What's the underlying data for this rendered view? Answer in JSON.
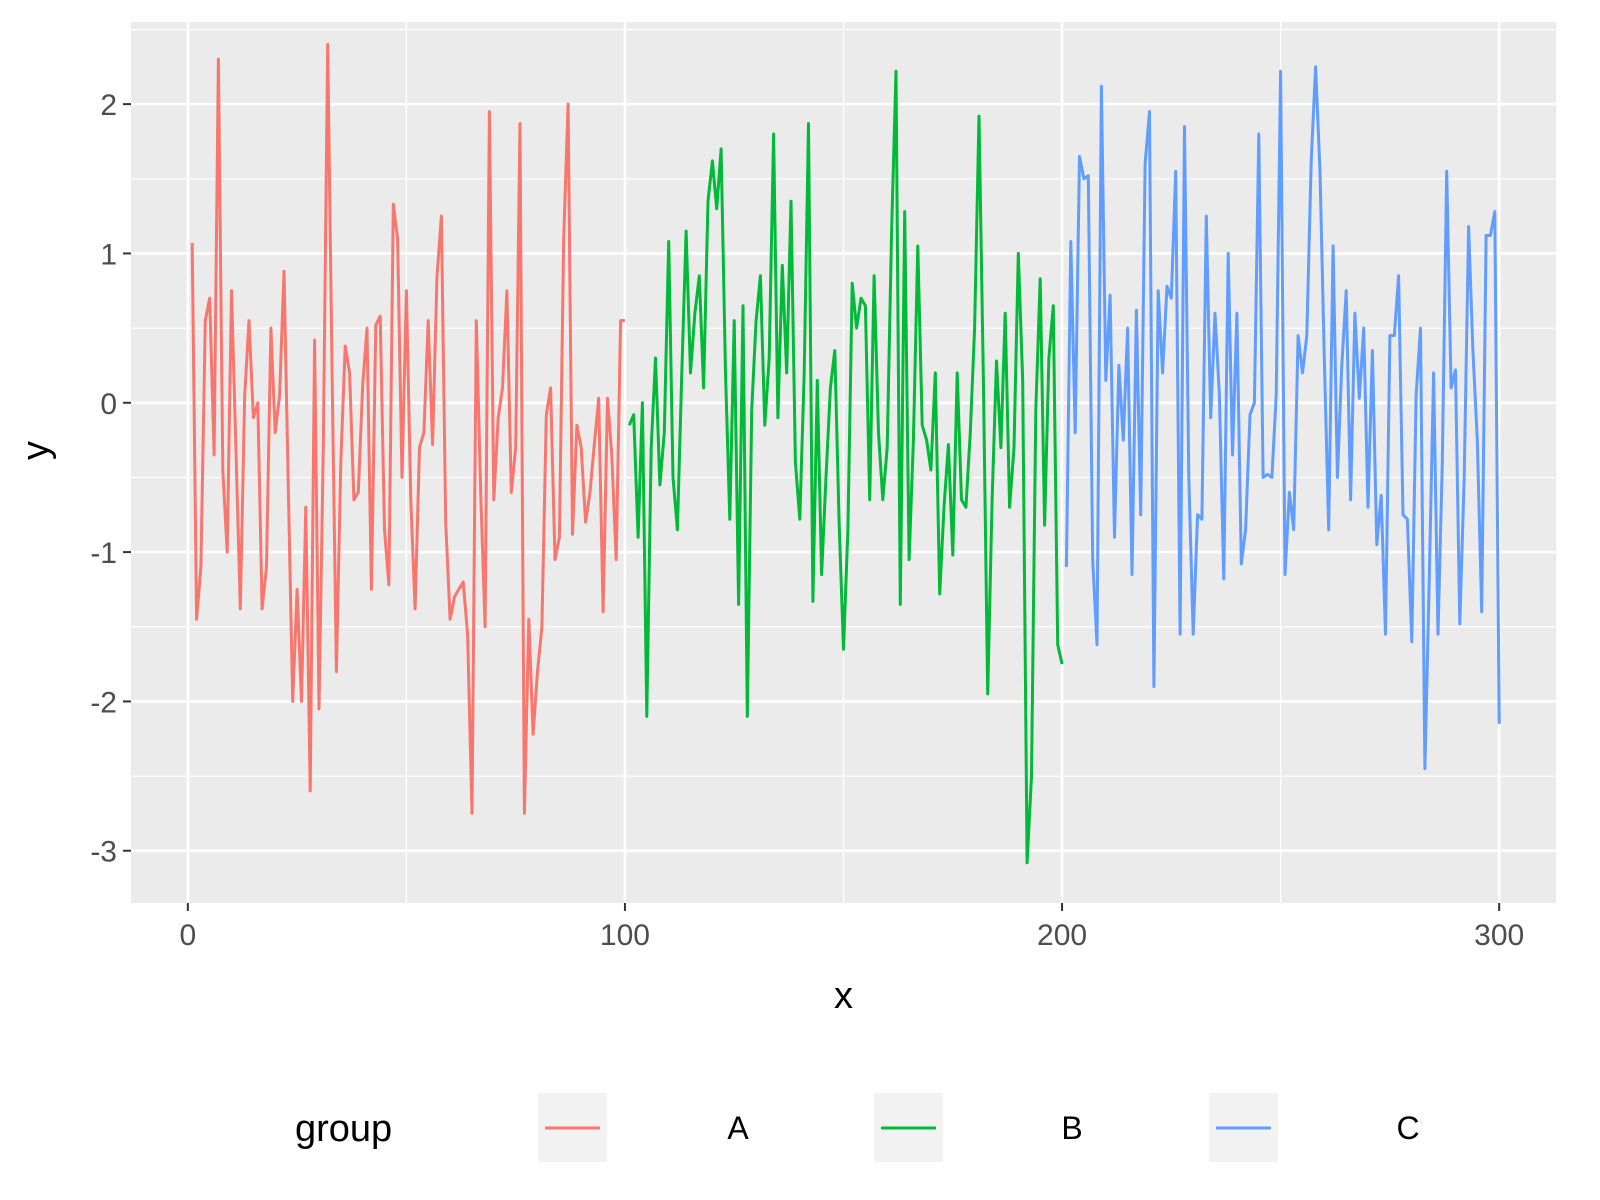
{
  "chart_data": {
    "type": "line",
    "title": "",
    "xlabel": "x",
    "ylabel": "y",
    "xlim": [
      -13,
      313
    ],
    "ylim": [
      -3.35,
      2.55
    ],
    "xticks": [
      0,
      100,
      200,
      300
    ],
    "xtick_labels": [
      "0",
      "100",
      "200",
      "300"
    ],
    "yticks": [
      -3,
      -2,
      -1,
      0,
      1,
      2
    ],
    "ytick_labels": [
      "-3",
      "-2",
      "-1",
      "0",
      "1",
      "2"
    ],
    "grid": true,
    "legend": {
      "title": "group",
      "position": "bottom"
    },
    "colors": {
      "panel": "#EBEBEB",
      "grid": "#FFFFFF",
      "A": "#F8766D",
      "B": "#00BA38",
      "C": "#619CFF"
    },
    "series": [
      {
        "name": "A",
        "color": "#F8766D",
        "x": [
          1,
          2,
          3,
          4,
          5,
          6,
          7,
          8,
          9,
          10,
          11,
          12,
          13,
          14,
          15,
          16,
          17,
          18,
          19,
          20,
          21,
          22,
          23,
          24,
          25,
          26,
          27,
          28,
          29,
          30,
          31,
          32,
          33,
          34,
          35,
          36,
          37,
          38,
          39,
          40,
          41,
          42,
          43,
          44,
          45,
          46,
          47,
          48,
          49,
          50,
          51,
          52,
          53,
          54,
          55,
          56,
          57,
          58,
          59,
          60,
          61,
          62,
          63,
          64,
          65,
          66,
          67,
          68,
          69,
          70,
          71,
          72,
          73,
          74,
          75,
          76,
          77,
          78,
          79,
          80,
          81,
          82,
          83,
          84,
          85,
          86,
          87,
          88,
          89,
          90,
          91,
          92,
          93,
          94,
          95,
          96,
          97,
          98,
          99,
          100
        ],
        "y": [
          1.07,
          -1.45,
          -1.1,
          0.55,
          0.7,
          -0.35,
          2.3,
          -0.45,
          -1.0,
          0.75,
          -0.3,
          -1.38,
          0.05,
          0.55,
          -0.1,
          0.0,
          -1.38,
          -1.1,
          0.5,
          -0.2,
          0.05,
          0.88,
          -0.6,
          -2.0,
          -1.25,
          -2.0,
          -0.7,
          -2.6,
          0.42,
          -2.05,
          -0.3,
          2.4,
          0.2,
          -1.8,
          -0.4,
          0.38,
          0.2,
          -0.65,
          -0.6,
          0.12,
          0.5,
          -1.25,
          0.52,
          0.58,
          -0.85,
          -1.22,
          1.33,
          1.1,
          -0.5,
          0.75,
          -0.65,
          -1.38,
          -0.3,
          -0.2,
          0.55,
          -0.28,
          0.85,
          1.25,
          -0.8,
          -1.45,
          -1.3,
          -1.25,
          -1.2,
          -1.55,
          -2.75,
          0.55,
          -0.6,
          -1.5,
          1.95,
          -0.65,
          -0.1,
          0.1,
          0.75,
          -0.6,
          -0.3,
          1.87,
          -2.75,
          -1.45,
          -2.22,
          -1.8,
          -1.5,
          -0.08,
          0.1,
          -1.05,
          -0.9,
          1.1,
          2.0,
          -0.88,
          -0.15,
          -0.3,
          -0.8,
          -0.6,
          -0.28,
          0.03,
          -1.4,
          0.03,
          -0.35,
          -1.05,
          0.55,
          0.55
        ]
      },
      {
        "name": "B",
        "color": "#00BA38",
        "x": [
          101,
          102,
          103,
          104,
          105,
          106,
          107,
          108,
          109,
          110,
          111,
          112,
          113,
          114,
          115,
          116,
          117,
          118,
          119,
          120,
          121,
          122,
          123,
          124,
          125,
          126,
          127,
          128,
          129,
          130,
          131,
          132,
          133,
          134,
          135,
          136,
          137,
          138,
          139,
          140,
          141,
          142,
          143,
          144,
          145,
          146,
          147,
          148,
          149,
          150,
          151,
          152,
          153,
          154,
          155,
          156,
          157,
          158,
          159,
          160,
          161,
          162,
          163,
          164,
          165,
          166,
          167,
          168,
          169,
          170,
          171,
          172,
          173,
          174,
          175,
          176,
          177,
          178,
          179,
          180,
          181,
          182,
          183,
          184,
          185,
          186,
          187,
          188,
          189,
          190,
          191,
          192,
          193,
          194,
          195,
          196,
          197,
          198,
          199,
          200
        ],
        "y": [
          -0.15,
          -0.08,
          -0.9,
          0.0,
          -2.1,
          -0.3,
          0.3,
          -0.55,
          -0.2,
          1.08,
          -0.5,
          -0.85,
          0.2,
          1.15,
          0.2,
          0.6,
          0.85,
          0.1,
          1.35,
          1.62,
          1.3,
          1.7,
          0.2,
          -0.78,
          0.55,
          -1.35,
          0.65,
          -2.1,
          -0.05,
          0.55,
          0.85,
          -0.15,
          0.3,
          1.8,
          -0.1,
          0.92,
          0.2,
          1.35,
          -0.4,
          -0.78,
          0.2,
          1.87,
          -1.33,
          0.15,
          -1.15,
          -0.5,
          0.1,
          0.35,
          -0.8,
          -1.65,
          -0.85,
          0.8,
          0.5,
          0.7,
          0.65,
          -0.65,
          0.85,
          -0.2,
          -0.65,
          -0.3,
          1.15,
          2.22,
          -1.35,
          1.28,
          -1.05,
          -0.25,
          1.05,
          -0.15,
          -0.25,
          -0.45,
          0.2,
          -1.28,
          -0.7,
          -0.28,
          -1.02,
          0.2,
          -0.65,
          -0.7,
          -0.2,
          0.5,
          1.92,
          0.15,
          -1.95,
          -0.65,
          0.28,
          -0.3,
          0.6,
          -0.7,
          -0.3,
          1.0,
          0.15,
          -3.08,
          -2.5,
          -0.05,
          0.83,
          -0.82,
          0.3,
          0.65,
          -1.62,
          -1.75
        ]
      },
      {
        "name": "C",
        "color": "#619CFF",
        "x": [
          201,
          202,
          203,
          204,
          205,
          206,
          207,
          208,
          209,
          210,
          211,
          212,
          213,
          214,
          215,
          216,
          217,
          218,
          219,
          220,
          221,
          222,
          223,
          224,
          225,
          226,
          227,
          228,
          229,
          230,
          231,
          232,
          233,
          234,
          235,
          236,
          237,
          238,
          239,
          240,
          241,
          242,
          243,
          244,
          245,
          246,
          247,
          248,
          249,
          250,
          251,
          252,
          253,
          254,
          255,
          256,
          257,
          258,
          259,
          260,
          261,
          262,
          263,
          264,
          265,
          266,
          267,
          268,
          269,
          270,
          271,
          272,
          273,
          274,
          275,
          276,
          277,
          278,
          279,
          280,
          281,
          282,
          283,
          284,
          285,
          286,
          287,
          288,
          289,
          290,
          291,
          292,
          293,
          294,
          295,
          296,
          297,
          298,
          299,
          300
        ],
        "y": [
          -1.1,
          1.08,
          -0.2,
          1.65,
          1.5,
          1.52,
          -1.05,
          -1.62,
          2.12,
          0.15,
          0.72,
          -0.9,
          0.25,
          -0.25,
          0.5,
          -1.15,
          0.62,
          -0.75,
          1.6,
          1.95,
          -1.9,
          0.75,
          0.2,
          0.78,
          0.7,
          1.55,
          -1.55,
          1.85,
          -0.5,
          -1.55,
          -0.75,
          -0.78,
          1.25,
          -0.1,
          0.6,
          0.05,
          -1.18,
          1.0,
          -0.35,
          0.6,
          -1.08,
          -0.85,
          -0.08,
          0.0,
          1.8,
          -0.5,
          -0.48,
          -0.5,
          0.05,
          2.22,
          -1.15,
          -0.6,
          -0.85,
          0.45,
          0.2,
          0.45,
          1.62,
          2.25,
          1.55,
          0.3,
          -0.85,
          1.05,
          -0.5,
          0.25,
          0.75,
          -0.65,
          0.6,
          0.03,
          0.5,
          -0.7,
          0.35,
          -0.95,
          -0.62,
          -1.55,
          0.45,
          0.45,
          0.85,
          -0.75,
          -0.78,
          -1.6,
          0.05,
          0.5,
          -2.45,
          -1.2,
          0.2,
          -1.55,
          -0.4,
          1.55,
          0.1,
          0.22,
          -1.48,
          -0.5,
          1.18,
          0.35,
          -0.25,
          -1.4,
          1.12,
          1.12,
          1.28,
          -2.15
        ]
      }
    ]
  }
}
